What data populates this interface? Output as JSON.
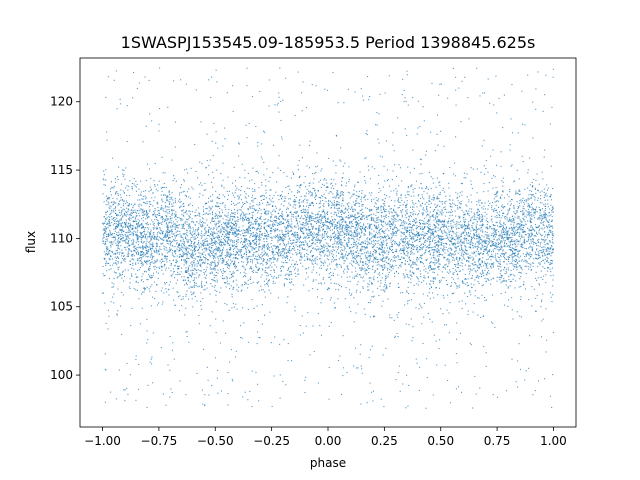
{
  "chart_data": {
    "type": "scatter",
    "title": "1SWASPJ153545.09-185953.5 Period 1398845.625s",
    "xlabel": "phase",
    "ylabel": "flux",
    "xlim": [
      -1.1,
      1.1
    ],
    "ylim": [
      96.2,
      123.2
    ],
    "xticks": [
      -1.0,
      -0.75,
      -0.5,
      -0.25,
      0.0,
      0.25,
      0.5,
      0.75,
      1.0
    ],
    "xtick_labels": [
      "−1.00",
      "−0.75",
      "−0.50",
      "−0.25",
      "0.00",
      "0.25",
      "0.50",
      "0.75",
      "1.00"
    ],
    "yticks": [
      100,
      105,
      110,
      115,
      120
    ],
    "ytick_labels": [
      "100",
      "105",
      "110",
      "115",
      "120"
    ],
    "grid": false,
    "legend": "none",
    "point_color": "#1f77b4",
    "x_range_of_points": [
      -1.0,
      1.0
    ],
    "flux_band_core": [
      106.5,
      113.5
    ],
    "flux_envelope": [
      97.5,
      122.5
    ],
    "series": [
      {
        "phase": [
          -1.0,
          -0.95,
          -0.9,
          -0.85,
          -0.8,
          -0.75,
          -0.7,
          -0.65,
          -0.6,
          -0.55,
          -0.5,
          -0.45,
          -0.4,
          -0.35,
          -0.3,
          -0.25,
          -0.2,
          -0.15,
          -0.1,
          -0.05,
          0.0,
          0.05,
          0.1,
          0.15,
          0.2,
          0.25,
          0.3,
          0.35,
          0.4,
          0.45,
          0.5,
          0.55,
          0.6,
          0.65,
          0.7,
          0.75,
          0.8,
          0.85,
          0.9,
          0.95,
          1.0
        ],
        "flux_mean": [
          110.2,
          110.5,
          110.6,
          110.2,
          109.8,
          110.1,
          110.3,
          109.6,
          109.4,
          109.5,
          109.6,
          109.8,
          109.9,
          110.0,
          110.3,
          110.1,
          110.4,
          110.6,
          110.8,
          110.6,
          110.4,
          110.7,
          110.5,
          110.1,
          109.8,
          109.9,
          110.2,
          110.0,
          109.9,
          110.2,
          110.1,
          109.8,
          109.6,
          109.7,
          109.9,
          110.1,
          110.2,
          110.4,
          110.5,
          110.3,
          110.4
        ]
      }
    ]
  }
}
